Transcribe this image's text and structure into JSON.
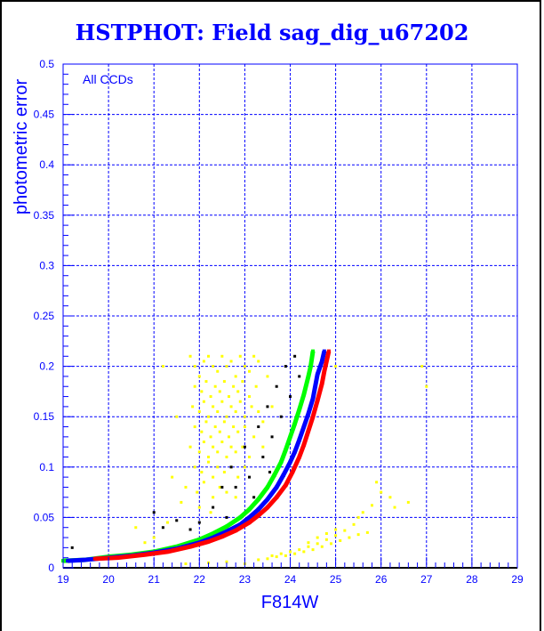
{
  "chart_data": {
    "type": "scatter",
    "title": "HSTPHOT: Field sag_dig_u67202",
    "xlabel": "F814W",
    "ylabel": "photometric error",
    "annotation": "All CCDs",
    "xlim": [
      19,
      29
    ],
    "ylim": [
      0,
      0.5
    ],
    "grid": true,
    "x_ticks": [
      "19",
      "20",
      "21",
      "22",
      "23",
      "24",
      "25",
      "26",
      "27",
      "28",
      "29"
    ],
    "y_ticks": [
      "0",
      "0.05",
      "0.1",
      "0.15",
      "0.2",
      "0.25",
      "0.3",
      "0.35",
      "0.4",
      "0.45",
      "0.5"
    ],
    "series": [
      {
        "name": "yellow",
        "color": "#ffff00",
        "band": false,
        "points": [
          [
            21.8,
            0.21
          ],
          [
            21.9,
            0.2
          ],
          [
            22.0,
            0.19
          ],
          [
            22.1,
            0.205
          ],
          [
            22.2,
            0.21
          ],
          [
            22.3,
            0.2
          ],
          [
            22.4,
            0.195
          ],
          [
            22.5,
            0.21
          ],
          [
            22.6,
            0.2
          ],
          [
            22.7,
            0.205
          ],
          [
            22.8,
            0.19
          ],
          [
            22.9,
            0.21
          ],
          [
            23.0,
            0.2
          ],
          [
            23.1,
            0.195
          ],
          [
            23.2,
            0.21
          ],
          [
            23.3,
            0.205
          ],
          [
            21.9,
            0.18
          ],
          [
            22.05,
            0.175
          ],
          [
            22.15,
            0.185
          ],
          [
            22.25,
            0.17
          ],
          [
            22.35,
            0.18
          ],
          [
            22.45,
            0.175
          ],
          [
            22.55,
            0.185
          ],
          [
            22.65,
            0.17
          ],
          [
            22.75,
            0.18
          ],
          [
            22.85,
            0.175
          ],
          [
            22.95,
            0.185
          ],
          [
            23.1,
            0.17
          ],
          [
            23.25,
            0.18
          ],
          [
            21.85,
            0.16
          ],
          [
            22.0,
            0.155
          ],
          [
            22.1,
            0.165
          ],
          [
            22.2,
            0.15
          ],
          [
            22.3,
            0.16
          ],
          [
            22.4,
            0.155
          ],
          [
            22.5,
            0.165
          ],
          [
            22.6,
            0.15
          ],
          [
            22.7,
            0.16
          ],
          [
            22.8,
            0.155
          ],
          [
            22.9,
            0.165
          ],
          [
            23.0,
            0.15
          ],
          [
            23.15,
            0.16
          ],
          [
            23.3,
            0.155
          ],
          [
            21.9,
            0.14
          ],
          [
            22.05,
            0.135
          ],
          [
            22.15,
            0.145
          ],
          [
            22.25,
            0.13
          ],
          [
            22.35,
            0.14
          ],
          [
            22.45,
            0.135
          ],
          [
            22.55,
            0.145
          ],
          [
            22.65,
            0.13
          ],
          [
            22.75,
            0.14
          ],
          [
            22.85,
            0.135
          ],
          [
            23.0,
            0.14
          ],
          [
            23.2,
            0.13
          ],
          [
            23.4,
            0.145
          ],
          [
            21.8,
            0.12
          ],
          [
            22.0,
            0.115
          ],
          [
            22.1,
            0.125
          ],
          [
            22.2,
            0.11
          ],
          [
            22.3,
            0.12
          ],
          [
            22.4,
            0.115
          ],
          [
            22.5,
            0.125
          ],
          [
            22.6,
            0.11
          ],
          [
            22.7,
            0.12
          ],
          [
            22.8,
            0.115
          ],
          [
            22.95,
            0.12
          ],
          [
            23.1,
            0.11
          ],
          [
            21.9,
            0.1
          ],
          [
            22.05,
            0.095
          ],
          [
            22.2,
            0.105
          ],
          [
            22.3,
            0.09
          ],
          [
            22.4,
            0.1
          ],
          [
            22.55,
            0.095
          ],
          [
            22.7,
            0.1
          ],
          [
            22.85,
            0.09
          ],
          [
            23.0,
            0.1
          ],
          [
            21.7,
            0.08
          ],
          [
            21.95,
            0.075
          ],
          [
            22.1,
            0.085
          ],
          [
            22.3,
            0.07
          ],
          [
            22.45,
            0.08
          ],
          [
            22.6,
            0.075
          ],
          [
            22.8,
            0.07
          ],
          [
            22.0,
            0.06
          ],
          [
            22.25,
            0.055
          ],
          [
            21.6,
            0.065
          ],
          [
            21.4,
            0.09
          ],
          [
            21.2,
            0.2
          ],
          [
            21.5,
            0.15
          ],
          [
            23.5,
            0.19
          ],
          [
            23.6,
            0.16
          ],
          [
            23.4,
            0.12
          ],
          [
            20.6,
            0.04
          ],
          [
            20.8,
            0.025
          ],
          [
            21.0,
            0.03
          ],
          [
            21.3,
            0.045
          ],
          [
            22.2,
            0.005
          ],
          [
            21.7,
            0.004
          ],
          [
            22.6,
            0.006
          ],
          [
            23.0,
            0.004
          ],
          [
            23.3,
            0.008
          ],
          [
            23.5,
            0.009
          ],
          [
            23.7,
            0.011
          ],
          [
            23.9,
            0.012
          ],
          [
            24.1,
            0.014
          ],
          [
            24.3,
            0.016
          ],
          [
            24.5,
            0.018
          ],
          [
            24.7,
            0.021
          ],
          [
            24.9,
            0.024
          ],
          [
            25.1,
            0.027
          ],
          [
            25.3,
            0.03
          ],
          [
            25.5,
            0.033
          ],
          [
            25.7,
            0.035
          ],
          [
            23.6,
            0.012
          ],
          [
            23.8,
            0.014
          ],
          [
            24.0,
            0.016
          ],
          [
            24.2,
            0.018
          ],
          [
            24.4,
            0.021
          ],
          [
            24.6,
            0.024
          ],
          [
            24.8,
            0.028
          ],
          [
            25.0,
            0.032
          ],
          [
            25.2,
            0.037
          ],
          [
            25.4,
            0.043
          ],
          [
            25.5,
            0.05
          ],
          [
            25.6,
            0.055
          ],
          [
            25.8,
            0.062
          ],
          [
            26.0,
            0.075
          ],
          [
            25.9,
            0.085
          ],
          [
            26.2,
            0.07
          ],
          [
            26.3,
            0.06
          ],
          [
            26.6,
            0.065
          ],
          [
            24.4,
            0.025
          ],
          [
            24.6,
            0.03
          ],
          [
            24.8,
            0.034
          ],
          [
            25.0,
            0.038
          ],
          [
            27.0,
            0.18
          ],
          [
            26.9,
            0.2
          ],
          [
            25.0,
            0.2
          ]
        ]
      },
      {
        "name": "black",
        "color": "#000000",
        "band": false,
        "points": [
          [
            19.2,
            0.02
          ],
          [
            21.0,
            0.055
          ],
          [
            21.2,
            0.04
          ],
          [
            21.5,
            0.047
          ],
          [
            21.8,
            0.038
          ],
          [
            22.0,
            0.045
          ],
          [
            22.3,
            0.06
          ],
          [
            22.5,
            0.08
          ],
          [
            22.7,
            0.1
          ],
          [
            22.8,
            0.08
          ],
          [
            23.0,
            0.12
          ],
          [
            23.1,
            0.09
          ],
          [
            23.3,
            0.14
          ],
          [
            23.4,
            0.11
          ],
          [
            23.5,
            0.16
          ],
          [
            23.6,
            0.13
          ],
          [
            23.7,
            0.18
          ],
          [
            23.8,
            0.15
          ],
          [
            23.9,
            0.2
          ],
          [
            24.0,
            0.17
          ],
          [
            24.1,
            0.21
          ],
          [
            24.2,
            0.19
          ],
          [
            22.6,
            0.05
          ],
          [
            23.2,
            0.07
          ],
          [
            23.55,
            0.095
          ]
        ]
      },
      {
        "name": "green",
        "color": "#00ff00",
        "band": true,
        "points": [
          [
            19.0,
            0.007
          ],
          [
            19.5,
            0.008
          ],
          [
            20.0,
            0.011
          ],
          [
            20.5,
            0.013
          ],
          [
            21.0,
            0.016
          ],
          [
            21.5,
            0.021
          ],
          [
            22.0,
            0.028
          ],
          [
            22.3,
            0.034
          ],
          [
            22.6,
            0.041
          ],
          [
            22.9,
            0.05
          ],
          [
            23.1,
            0.058
          ],
          [
            23.3,
            0.068
          ],
          [
            23.5,
            0.08
          ],
          [
            23.65,
            0.092
          ],
          [
            23.8,
            0.105
          ],
          [
            23.9,
            0.117
          ],
          [
            24.0,
            0.13
          ],
          [
            24.1,
            0.143
          ],
          [
            24.2,
            0.157
          ],
          [
            24.3,
            0.172
          ],
          [
            24.4,
            0.19
          ],
          [
            24.45,
            0.2
          ],
          [
            24.5,
            0.215
          ]
        ]
      },
      {
        "name": "blue",
        "color": "#0000ff",
        "band": true,
        "points": [
          [
            19.1,
            0.007
          ],
          [
            19.5,
            0.008
          ],
          [
            20.0,
            0.01
          ],
          [
            20.5,
            0.012
          ],
          [
            21.0,
            0.015
          ],
          [
            21.5,
            0.019
          ],
          [
            22.0,
            0.025
          ],
          [
            22.3,
            0.03
          ],
          [
            22.6,
            0.036
          ],
          [
            22.9,
            0.043
          ],
          [
            23.1,
            0.05
          ],
          [
            23.3,
            0.058
          ],
          [
            23.5,
            0.068
          ],
          [
            23.7,
            0.08
          ],
          [
            23.85,
            0.092
          ],
          [
            24.0,
            0.105
          ],
          [
            24.1,
            0.115
          ],
          [
            24.2,
            0.127
          ],
          [
            24.3,
            0.14
          ],
          [
            24.4,
            0.153
          ],
          [
            24.5,
            0.168
          ],
          [
            24.55,
            0.18
          ],
          [
            24.6,
            0.192
          ],
          [
            24.7,
            0.205
          ],
          [
            24.75,
            0.215
          ]
        ]
      },
      {
        "name": "red",
        "color": "#ff0000",
        "band": true,
        "points": [
          [
            19.7,
            0.009
          ],
          [
            20.2,
            0.01
          ],
          [
            20.8,
            0.013
          ],
          [
            21.3,
            0.016
          ],
          [
            21.8,
            0.021
          ],
          [
            22.2,
            0.026
          ],
          [
            22.5,
            0.031
          ],
          [
            22.8,
            0.037
          ],
          [
            23.1,
            0.045
          ],
          [
            23.3,
            0.052
          ],
          [
            23.5,
            0.06
          ],
          [
            23.7,
            0.07
          ],
          [
            23.9,
            0.082
          ],
          [
            24.05,
            0.095
          ],
          [
            24.2,
            0.11
          ],
          [
            24.3,
            0.122
          ],
          [
            24.4,
            0.136
          ],
          [
            24.5,
            0.15
          ],
          [
            24.6,
            0.166
          ],
          [
            24.7,
            0.183
          ],
          [
            24.75,
            0.195
          ],
          [
            24.8,
            0.205
          ],
          [
            24.85,
            0.215
          ]
        ]
      }
    ]
  }
}
